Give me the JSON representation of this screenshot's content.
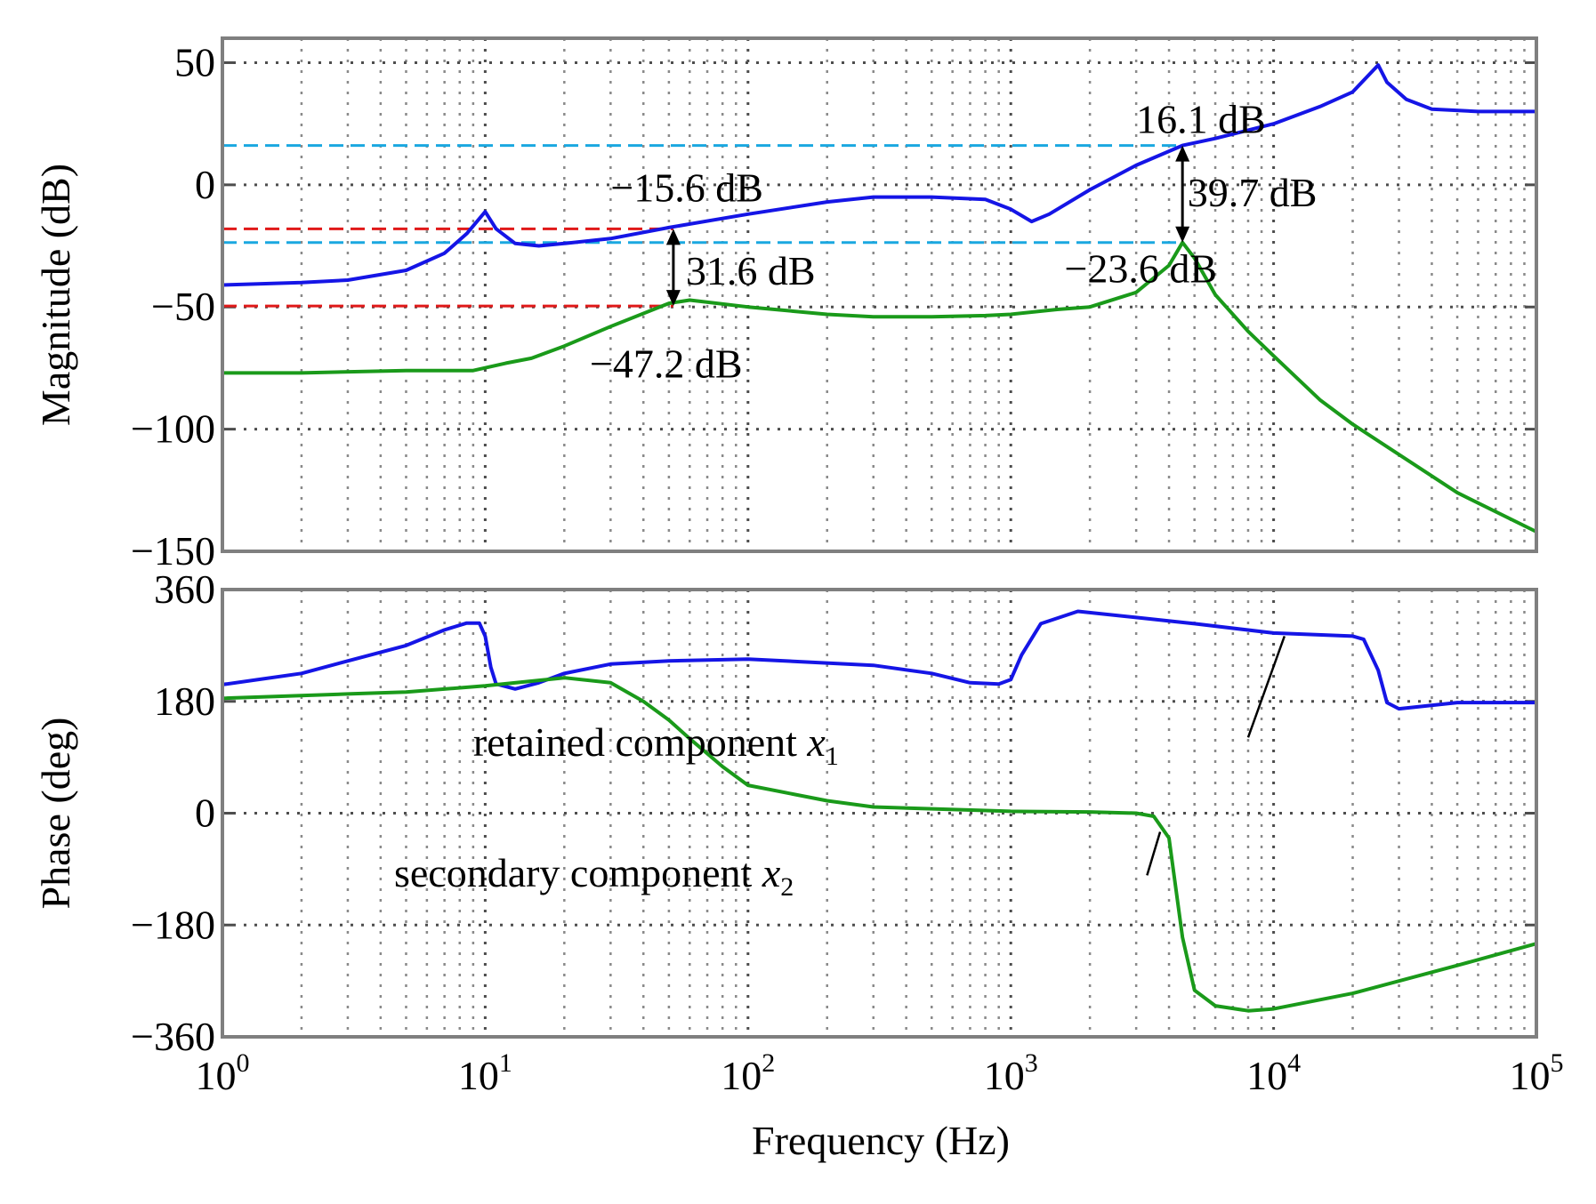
{
  "chart_data": {
    "type": "line",
    "x_scale": "log",
    "xlim": [
      1,
      100000
    ],
    "xlabel": "Frequency  (Hz)",
    "x_ticks": [
      {
        "value": 1,
        "base": "10",
        "exp": "0"
      },
      {
        "value": 10,
        "base": "10",
        "exp": "1"
      },
      {
        "value": 100,
        "base": "10",
        "exp": "2"
      },
      {
        "value": 1000,
        "base": "10",
        "exp": "3"
      },
      {
        "value": 10000,
        "base": "10",
        "exp": "4"
      },
      {
        "value": 100000,
        "base": "10",
        "exp": "5"
      }
    ],
    "grid": true,
    "colors": {
      "x1": "#1515e6",
      "x2": "#1a9a1a",
      "ref_red": "#e01919",
      "ref_cyan": "#1aa8e0",
      "arrow": "#000000",
      "frame": "#7f7f7f"
    },
    "magnitude": {
      "ylabel": "Magnitude (dB)",
      "ylim": [
        -150,
        60
      ],
      "y_ticks": [
        {
          "value": 50,
          "label": "50"
        },
        {
          "value": 0,
          "label": "0"
        },
        {
          "value": -50,
          "label": "−50"
        },
        {
          "value": -100,
          "label": "−100"
        },
        {
          "value": -150,
          "label": "−150"
        }
      ],
      "series": [
        {
          "name": "x1",
          "points": [
            [
              1,
              -41
            ],
            [
              2,
              -40
            ],
            [
              3,
              -39
            ],
            [
              5,
              -35
            ],
            [
              7,
              -28
            ],
            [
              8.5,
              -20
            ],
            [
              10,
              -11
            ],
            [
              11,
              -18
            ],
            [
              13,
              -24
            ],
            [
              16,
              -25
            ],
            [
              20,
              -24
            ],
            [
              30,
              -22
            ],
            [
              50,
              -17.5
            ],
            [
              100,
              -12
            ],
            [
              200,
              -7
            ],
            [
              300,
              -5
            ],
            [
              500,
              -5
            ],
            [
              800,
              -6
            ],
            [
              1000,
              -10
            ],
            [
              1200,
              -15
            ],
            [
              1400,
              -12
            ],
            [
              2000,
              -2
            ],
            [
              3000,
              8
            ],
            [
              4500,
              16.1
            ],
            [
              6000,
              19
            ],
            [
              10000,
              25
            ],
            [
              15000,
              32
            ],
            [
              20000,
              38
            ],
            [
              24000,
              47
            ],
            [
              25000,
              49
            ],
            [
              27000,
              42
            ],
            [
              32000,
              35
            ],
            [
              40000,
              31
            ],
            [
              60000,
              30
            ],
            [
              100000,
              30
            ]
          ]
        },
        {
          "name": "x2",
          "points": [
            [
              1,
              -77
            ],
            [
              2,
              -77
            ],
            [
              5,
              -76
            ],
            [
              9,
              -76
            ],
            [
              12,
              -73
            ],
            [
              15,
              -71
            ],
            [
              20,
              -66
            ],
            [
              30,
              -58
            ],
            [
              50,
              -48.5
            ],
            [
              60,
              -47.2
            ],
            [
              100,
              -50
            ],
            [
              200,
              -53
            ],
            [
              300,
              -54
            ],
            [
              500,
              -54
            ],
            [
              800,
              -53.5
            ],
            [
              1000,
              -53
            ],
            [
              1500,
              -51
            ],
            [
              2000,
              -50
            ],
            [
              3000,
              -44
            ],
            [
              4000,
              -33
            ],
            [
              4500,
              -23.6
            ],
            [
              5000,
              -30
            ],
            [
              6000,
              -45
            ],
            [
              8000,
              -60
            ],
            [
              10000,
              -70
            ],
            [
              15000,
              -88
            ],
            [
              20000,
              -98
            ],
            [
              50000,
              -126
            ],
            [
              100000,
              -142
            ]
          ]
        }
      ],
      "ref_lines": [
        {
          "value": 16.1,
          "color": "ref_cyan",
          "x_end": 4500
        },
        {
          "value": -18.0,
          "color": "ref_red",
          "x_end": 52
        },
        {
          "value": -23.6,
          "color": "ref_cyan",
          "x_end": 4500
        },
        {
          "value": -49.6,
          "color": "ref_red",
          "x_end": 52
        }
      ],
      "arrows": [
        {
          "x": 52,
          "from": -18.0,
          "to": -49.6
        },
        {
          "x": 4500,
          "from": 16.1,
          "to": -23.6
        }
      ],
      "annotations": [
        {
          "text": "16.1 dB",
          "x": 3000,
          "y": 27
        },
        {
          "text": "−15.6 dB",
          "x": 30,
          "y": -1
        },
        {
          "text": "39.7 dB",
          "x": 4700,
          "y": -3
        },
        {
          "text": "31.6 dB",
          "x": 58,
          "y": -35
        },
        {
          "text": "−23.6 dB",
          "x": 1600,
          "y": -34
        },
        {
          "text": "−47.2 dB",
          "x": 25,
          "y": -73
        }
      ]
    },
    "phase": {
      "ylabel": "Phase (deg)",
      "ylim": [
        -360,
        360
      ],
      "y_ticks": [
        {
          "value": 360,
          "label": "360"
        },
        {
          "value": 180,
          "label": "180"
        },
        {
          "value": 0,
          "label": "0"
        },
        {
          "value": -180,
          "label": "−180"
        },
        {
          "value": -360,
          "label": "−360"
        }
      ],
      "series": [
        {
          "name": "x1",
          "points": [
            [
              1,
              207
            ],
            [
              2,
              225
            ],
            [
              3,
              245
            ],
            [
              5,
              270
            ],
            [
              7,
              295
            ],
            [
              8.5,
              306
            ],
            [
              9.5,
              306
            ],
            [
              10,
              285
            ],
            [
              10.5,
              235
            ],
            [
              11,
              208
            ],
            [
              13,
              200
            ],
            [
              16,
              210
            ],
            [
              20,
              225
            ],
            [
              30,
              240
            ],
            [
              50,
              245
            ],
            [
              100,
              248
            ],
            [
              300,
              238
            ],
            [
              500,
              225
            ],
            [
              700,
              210
            ],
            [
              900,
              208
            ],
            [
              1000,
              215
            ],
            [
              1100,
              255
            ],
            [
              1300,
              305
            ],
            [
              1800,
              325
            ],
            [
              3000,
              315
            ],
            [
              5000,
              305
            ],
            [
              10000,
              290
            ],
            [
              20000,
              285
            ],
            [
              22000,
              280
            ],
            [
              25000,
              230
            ],
            [
              27000,
              178
            ],
            [
              30000,
              168
            ],
            [
              50000,
              178
            ],
            [
              100000,
              178
            ]
          ]
        },
        {
          "name": "x2",
          "points": [
            [
              1,
              185
            ],
            [
              3,
              192
            ],
            [
              5,
              195
            ],
            [
              10,
              205
            ],
            [
              20,
              218
            ],
            [
              30,
              210
            ],
            [
              40,
              180
            ],
            [
              50,
              150
            ],
            [
              60,
              120
            ],
            [
              80,
              75
            ],
            [
              100,
              45
            ],
            [
              200,
              20
            ],
            [
              300,
              10
            ],
            [
              1000,
              3
            ],
            [
              2000,
              2
            ],
            [
              3000,
              0
            ],
            [
              3500,
              -5
            ],
            [
              4000,
              -40
            ],
            [
              4500,
              -200
            ],
            [
              5000,
              -285
            ],
            [
              6000,
              -310
            ],
            [
              8000,
              -318
            ],
            [
              10000,
              -315
            ],
            [
              20000,
              -290
            ],
            [
              50000,
              -245
            ],
            [
              100000,
              -210
            ]
          ]
        }
      ],
      "labels": [
        {
          "parts": [
            {
              "text": "retained component "
            },
            {
              "text": "x",
              "style": "it"
            },
            {
              "text": "1",
              "style": "sub"
            }
          ],
          "x": 9,
          "y": 115,
          "leader": [
            [
              8000,
              122
            ],
            [
              11000,
              285
            ]
          ]
        },
        {
          "parts": [
            {
              "text": "secondary component "
            },
            {
              "text": "x",
              "style": "it"
            },
            {
              "text": "2",
              "style": "sub"
            }
          ],
          "x": 4.5,
          "y": -95,
          "leader": [
            [
              3300,
              -100
            ],
            [
              3700,
              -30
            ]
          ]
        }
      ]
    }
  }
}
